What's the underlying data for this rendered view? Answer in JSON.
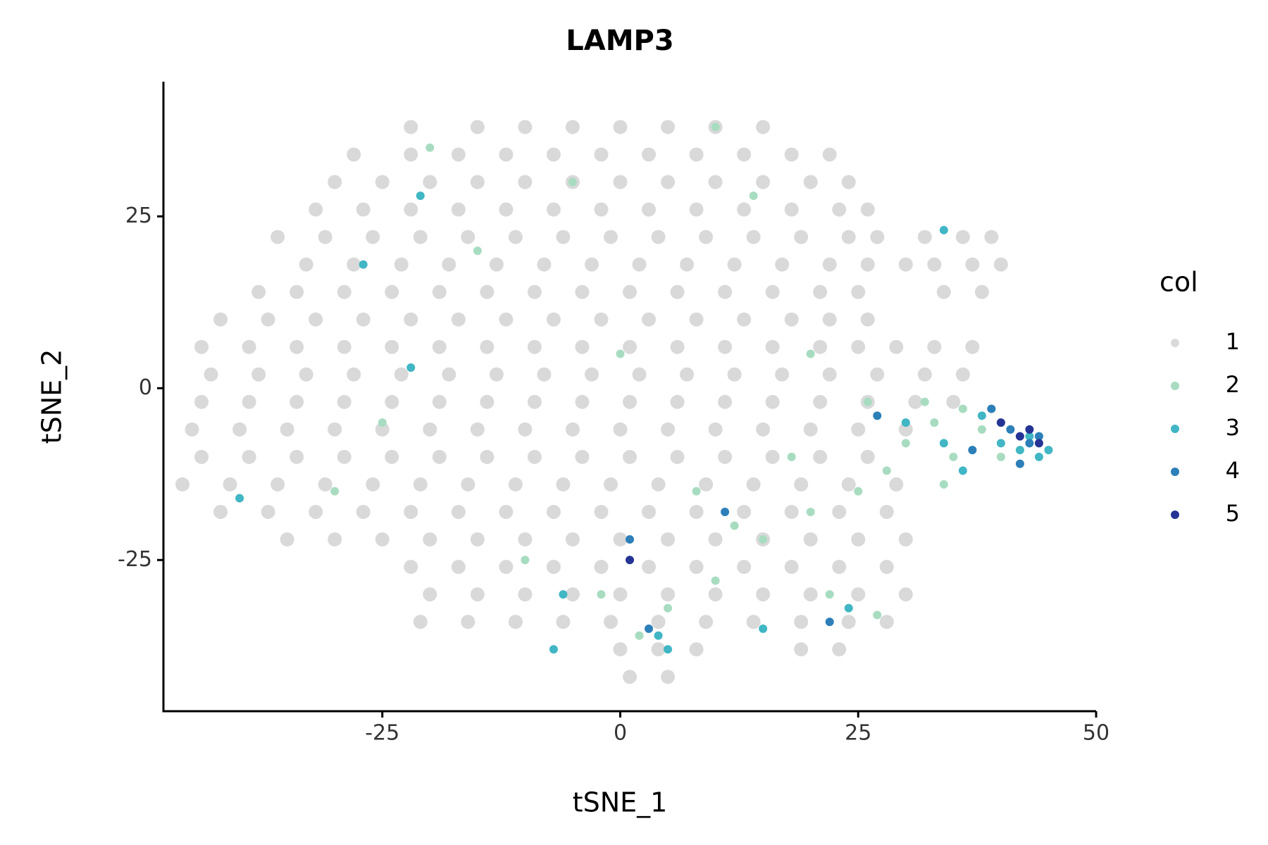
{
  "chart_data": {
    "type": "scatter",
    "title": "LAMP3",
    "x_label": "tSNE_1",
    "y_label": "tSNE_2",
    "xlim": [
      -48,
      50
    ],
    "ylim": [
      -47,
      44.6
    ],
    "xticks": [
      -25,
      0,
      25,
      50
    ],
    "yticks": [
      -25,
      0,
      25
    ],
    "legend_title": "col",
    "legend_position": "right",
    "series": [
      {
        "name": "1",
        "color": "#d9d9d9",
        "x": [
          -22,
          -15,
          -10,
          -5,
          0,
          5,
          10,
          15,
          -28,
          -22,
          -17,
          -12,
          -7,
          -2,
          3,
          8,
          13,
          18,
          22,
          -30,
          -25,
          -20,
          -15,
          -10,
          -5,
          0,
          5,
          10,
          15,
          20,
          24,
          -32,
          -27,
          -22,
          -17,
          -12,
          -7,
          -2,
          3,
          8,
          13,
          18,
          23,
          26,
          -36,
          -31,
          -26,
          -21,
          -16,
          -11,
          -6,
          -1,
          4,
          9,
          14,
          19,
          24,
          27,
          32,
          36,
          39,
          -33,
          -28,
          -23,
          -18,
          -13,
          -8,
          -3,
          2,
          7,
          12,
          17,
          22,
          26,
          30,
          33,
          37,
          40,
          -38,
          -34,
          -29,
          -24,
          -19,
          -14,
          -9,
          -4,
          1,
          6,
          11,
          16,
          21,
          25,
          34,
          38,
          -42,
          -37,
          -32,
          -27,
          -22,
          -17,
          -12,
          -7,
          -2,
          3,
          8,
          13,
          18,
          22,
          26,
          -44,
          -39,
          -34,
          -29,
          -24,
          -19,
          -14,
          -9,
          -4,
          1,
          6,
          11,
          16,
          21,
          25,
          29,
          33,
          37,
          -43,
          -38,
          -33,
          -28,
          -23,
          -18,
          -13,
          -8,
          -3,
          2,
          7,
          12,
          17,
          22,
          27,
          32,
          36,
          -44,
          -39,
          -34,
          -29,
          -24,
          -19,
          -14,
          -9,
          -4,
          1,
          6,
          11,
          16,
          21,
          26,
          31,
          35,
          -45,
          -40,
          -35,
          -30,
          -25,
          -20,
          -15,
          -10,
          -5,
          0,
          5,
          10,
          15,
          20,
          25,
          30,
          -44,
          -39,
          -34,
          -29,
          -24,
          -19,
          -14,
          -9,
          -4,
          1,
          6,
          11,
          16,
          21,
          26,
          -46,
          -41,
          -36,
          -31,
          -26,
          -21,
          -16,
          -11,
          -6,
          -1,
          4,
          9,
          14,
          19,
          24,
          29,
          -42,
          -37,
          -32,
          -27,
          -22,
          -17,
          -12,
          -7,
          -2,
          3,
          8,
          13,
          18,
          23,
          28,
          -35,
          -30,
          -25,
          -20,
          -15,
          -10,
          -5,
          0,
          5,
          10,
          15,
          20,
          25,
          30,
          -22,
          -17,
          -12,
          -7,
          -2,
          3,
          8,
          13,
          18,
          23,
          28,
          -20,
          -15,
          -10,
          -5,
          0,
          5,
          10,
          15,
          20,
          25,
          30,
          -21,
          -16,
          -11,
          -6,
          -1,
          4,
          9,
          14,
          19,
          24,
          28,
          0,
          4,
          8,
          19,
          23,
          1,
          5
        ],
        "values": [
          38,
          38,
          38,
          38,
          38,
          38,
          38,
          38,
          34,
          34,
          34,
          34,
          34,
          34,
          34,
          34,
          34,
          34,
          34,
          30,
          30,
          30,
          30,
          30,
          30,
          30,
          30,
          30,
          30,
          30,
          30,
          26,
          26,
          26,
          26,
          26,
          26,
          26,
          26,
          26,
          26,
          26,
          26,
          26,
          22,
          22,
          22,
          22,
          22,
          22,
          22,
          22,
          22,
          22,
          22,
          22,
          22,
          22,
          22,
          22,
          22,
          18,
          18,
          18,
          18,
          18,
          18,
          18,
          18,
          18,
          18,
          18,
          18,
          18,
          18,
          18,
          18,
          18,
          14,
          14,
          14,
          14,
          14,
          14,
          14,
          14,
          14,
          14,
          14,
          14,
          14,
          14,
          14,
          14,
          10,
          10,
          10,
          10,
          10,
          10,
          10,
          10,
          10,
          10,
          10,
          10,
          10,
          10,
          10,
          6,
          6,
          6,
          6,
          6,
          6,
          6,
          6,
          6,
          6,
          6,
          6,
          6,
          6,
          6,
          6,
          6,
          6,
          2,
          2,
          2,
          2,
          2,
          2,
          2,
          2,
          2,
          2,
          2,
          2,
          2,
          2,
          2,
          2,
          2,
          -2,
          -2,
          -2,
          -2,
          -2,
          -2,
          -2,
          -2,
          -2,
          -2,
          -2,
          -2,
          -2,
          -2,
          -2,
          -2,
          -2,
          -6,
          -6,
          -6,
          -6,
          -6,
          -6,
          -6,
          -6,
          -6,
          -6,
          -6,
          -6,
          -6,
          -6,
          -6,
          -6,
          -10,
          -10,
          -10,
          -10,
          -10,
          -10,
          -10,
          -10,
          -10,
          -10,
          -10,
          -10,
          -10,
          -10,
          -10,
          -14,
          -14,
          -14,
          -14,
          -14,
          -14,
          -14,
          -14,
          -14,
          -14,
          -14,
          -14,
          -14,
          -14,
          -14,
          -14,
          -18,
          -18,
          -18,
          -18,
          -18,
          -18,
          -18,
          -18,
          -18,
          -18,
          -18,
          -18,
          -18,
          -18,
          -18,
          -22,
          -22,
          -22,
          -22,
          -22,
          -22,
          -22,
          -22,
          -22,
          -22,
          -22,
          -22,
          -22,
          -22,
          -26,
          -26,
          -26,
          -26,
          -26,
          -26,
          -26,
          -26,
          -26,
          -26,
          -26,
          -30,
          -30,
          -30,
          -30,
          -30,
          -30,
          -30,
          -30,
          -30,
          -30,
          -30,
          -34,
          -34,
          -34,
          -34,
          -34,
          -34,
          -34,
          -34,
          -34,
          -34,
          -34,
          -38,
          -38,
          -38,
          -38,
          -38,
          -42,
          -42
        ]
      },
      {
        "name": "2",
        "color": "#a8dcc0",
        "x": [
          33,
          36,
          30,
          28,
          25,
          35,
          38,
          32,
          20,
          15,
          10,
          5,
          2,
          -2,
          12,
          22,
          27,
          18,
          8,
          -20,
          -5,
          10,
          -15,
          0,
          20,
          -25,
          -30,
          14,
          -10,
          26,
          40,
          34
        ],
        "values": [
          -5,
          -3,
          -8,
          -12,
          -15,
          -10,
          -6,
          -2,
          -18,
          -22,
          -28,
          -32,
          -36,
          -30,
          -20,
          -30,
          -33,
          -10,
          -15,
          35,
          30,
          38,
          20,
          5,
          5,
          -5,
          -15,
          28,
          -25,
          -2,
          -10,
          -14
        ]
      },
      {
        "name": "3",
        "color": "#41b6c4",
        "x": [
          40,
          42,
          44,
          38,
          36,
          34,
          30,
          4,
          -6,
          -40,
          -27,
          -22,
          -21,
          34,
          5,
          24,
          15,
          -7,
          43,
          45
        ],
        "values": [
          -8,
          -9,
          -10,
          -4,
          -12,
          -8,
          -5,
          -36,
          -30,
          -16,
          18,
          3,
          28,
          23,
          -38,
          -32,
          -35,
          -38,
          -7,
          -9
        ]
      },
      {
        "name": "4",
        "color": "#2c7fb8",
        "x": [
          41,
          43,
          39,
          37,
          42,
          27,
          11,
          3,
          1,
          22,
          44
        ],
        "values": [
          -6,
          -8,
          -3,
          -9,
          -11,
          -4,
          -18,
          -35,
          -22,
          -34,
          -7
        ]
      },
      {
        "name": "5",
        "color": "#253494",
        "x": [
          43,
          44,
          40,
          42,
          1
        ],
        "values": [
          -6,
          -8,
          -5,
          -7,
          -25
        ]
      }
    ]
  }
}
